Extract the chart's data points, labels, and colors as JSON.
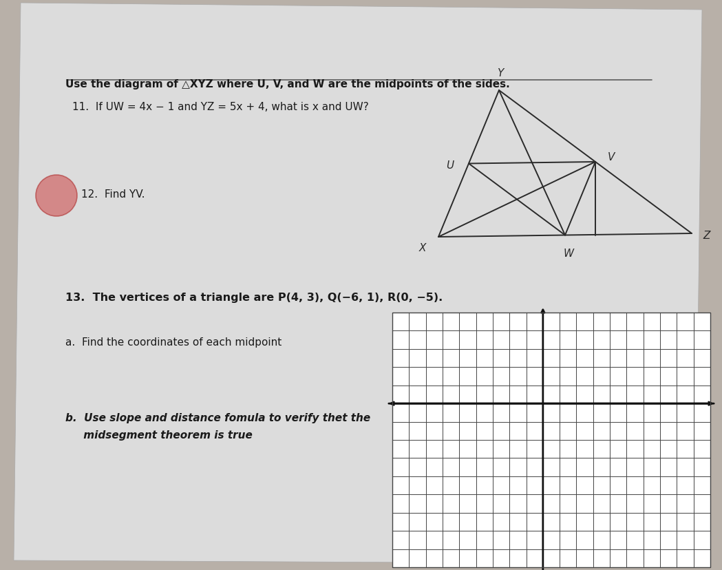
{
  "bg_color": "#b8b0a8",
  "paper_color": "#dcdcdc",
  "text_color": "#1a1a1a",
  "triangle_color": "#2a2a2a",
  "grid_line_color": "#444444",
  "axis_color": "#111111",
  "title_text": "Use the diagram of △XYZ where U, V, and W are the midpoints of the sides.",
  "q11_text": "11.  If UW = 4x − 1 and YZ = 5x + 4, what is x and UW?",
  "q12_text": "12.  Find YV.",
  "q13_text": "13.  The vertices of a triangle are P(4, 3), Q(−6, 1), R(0, −5).",
  "qa_text": "a.  Find the coordinates of each midpoint",
  "qb_line1": "b.  Use slope and distance fomula to verify thet the",
  "qb_line2": "     midsegment theorem is true",
  "title_fontsize": 11,
  "body_fontsize": 11,
  "stamp_color": "#cc4444",
  "stamp_alpha": 0.55
}
